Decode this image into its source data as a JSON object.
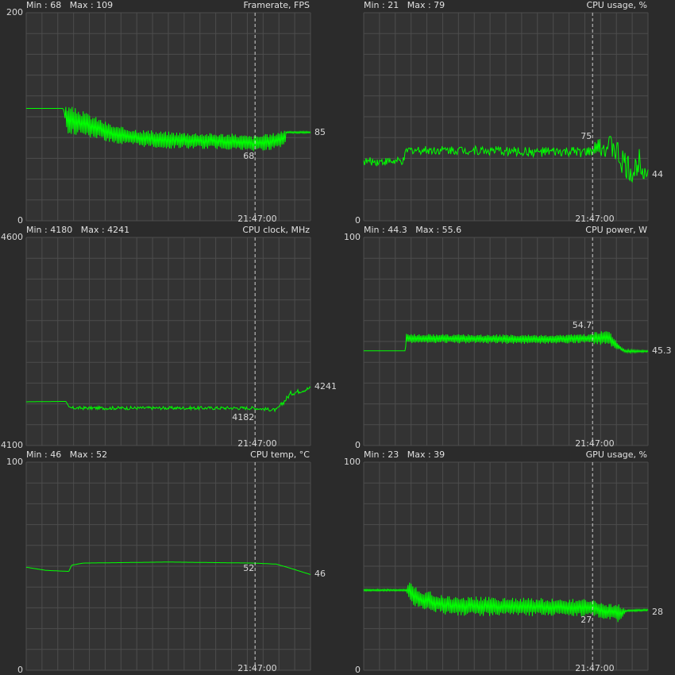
{
  "colors": {
    "background": "#2b2b2b",
    "plot_background": "#333333",
    "grid": "#4d4d4d",
    "line": "#00ff00",
    "marker": "#cfcfcf",
    "text": "#d8d8d8"
  },
  "marker_time": "21:47:00",
  "marker_fraction": 0.805,
  "chart_data": [
    {
      "type": "line",
      "title": "Framerate, FPS",
      "min_label": "Min : 68",
      "max_label": "Max : 109",
      "ylim": [
        0,
        200
      ],
      "y_top_label": "200",
      "y_bottom_label": "0",
      "current_label": "85",
      "current_value": 85,
      "marker_value_label": "68",
      "marker_value": 68,
      "series_shape": [
        [
          0,
          108
        ],
        [
          0.13,
          108
        ],
        [
          0.14,
          98
        ],
        [
          0.18,
          95
        ],
        [
          0.24,
          90
        ],
        [
          0.32,
          82
        ],
        [
          0.45,
          78
        ],
        [
          0.6,
          77
        ],
        [
          0.72,
          76
        ],
        [
          0.8,
          74
        ],
        [
          0.86,
          76
        ],
        [
          0.91,
          80
        ],
        [
          0.915,
          85
        ],
        [
          1,
          85
        ]
      ],
      "noise": [
        [
          0,
          0
        ],
        [
          0.135,
          0
        ],
        [
          0.14,
          14
        ],
        [
          0.3,
          9
        ],
        [
          0.6,
          8
        ],
        [
          0.91,
          8
        ],
        [
          0.915,
          1
        ],
        [
          1,
          1
        ]
      ],
      "noise_mode": "sawtooth"
    },
    {
      "type": "line",
      "title": "CPU usage, %",
      "min_label": "Min : 21",
      "max_label": "Max : 79",
      "ylim": [
        0,
        200
      ],
      "y_top_label": "",
      "y_bottom_label": "0",
      "current_label": "44",
      "current_value": 44,
      "marker_value_label": "75",
      "marker_value": 75,
      "series_shape": [
        [
          0,
          57
        ],
        [
          0.14,
          57
        ],
        [
          0.15,
          67
        ],
        [
          0.16,
          68
        ],
        [
          0.35,
          68
        ],
        [
          0.6,
          66
        ],
        [
          0.8,
          66
        ],
        [
          0.82,
          70
        ],
        [
          0.88,
          72
        ],
        [
          0.9,
          60
        ],
        [
          0.93,
          50
        ],
        [
          0.95,
          45
        ],
        [
          0.97,
          60
        ],
        [
          1,
          44
        ]
      ],
      "noise": [
        [
          0,
          4
        ],
        [
          0.14,
          4
        ],
        [
          0.15,
          4
        ],
        [
          0.8,
          5
        ],
        [
          0.82,
          8
        ],
        [
          0.9,
          14
        ],
        [
          1,
          12
        ]
      ],
      "noise_mode": "random"
    },
    {
      "type": "line",
      "title": "CPU clock, MHz",
      "min_label": "Min : 4180",
      "max_label": "Max : 4241",
      "ylim": [
        4100,
        4600
      ],
      "y_top_label": "4600",
      "y_bottom_label": "4100",
      "current_label": "4241",
      "current_value": 4241,
      "marker_value_label": "4182",
      "marker_value": 4182,
      "series_shape": [
        [
          0,
          4205
        ],
        [
          0.14,
          4206
        ],
        [
          0.15,
          4190
        ],
        [
          0.6,
          4190
        ],
        [
          0.8,
          4190
        ],
        [
          0.88,
          4185
        ],
        [
          0.9,
          4200
        ],
        [
          0.93,
          4225
        ],
        [
          1,
          4238
        ]
      ],
      "noise": [
        [
          0,
          0
        ],
        [
          0.14,
          0
        ],
        [
          0.15,
          4
        ],
        [
          0.88,
          4
        ],
        [
          0.9,
          6
        ],
        [
          1,
          5
        ]
      ],
      "noise_mode": "random"
    },
    {
      "type": "line",
      "title": "CPU power, W",
      "min_label": "Min : 44.3",
      "max_label": "Max : 55.6",
      "ylim": [
        0,
        100
      ],
      "y_top_label": "100",
      "y_bottom_label": "0",
      "current_label": "45.3",
      "current_value": 45.3,
      "marker_value_label": "54.7",
      "marker_value": 54.7,
      "series_shape": [
        [
          0,
          45.5
        ],
        [
          0.145,
          45.5
        ],
        [
          0.15,
          51.5
        ],
        [
          0.6,
          51
        ],
        [
          0.8,
          51.5
        ],
        [
          0.86,
          52
        ],
        [
          0.9,
          47
        ],
        [
          0.92,
          45.3
        ],
        [
          1,
          45.3
        ]
      ],
      "noise": [
        [
          0,
          0
        ],
        [
          0.145,
          0
        ],
        [
          0.15,
          2.2
        ],
        [
          0.8,
          2.2
        ],
        [
          0.82,
          3.5
        ],
        [
          0.88,
          3
        ],
        [
          0.9,
          1
        ],
        [
          1,
          0.5
        ]
      ],
      "noise_mode": "sawtooth"
    },
    {
      "type": "line",
      "title": "CPU temp, °C",
      "min_label": "Min : 46",
      "max_label": "Max : 52",
      "ylim": [
        0,
        100
      ],
      "y_top_label": "100",
      "y_bottom_label": "0",
      "current_label": "46",
      "current_value": 46,
      "marker_value_label": "52",
      "marker_value": 52,
      "series_shape": [
        [
          0,
          49.5
        ],
        [
          0.07,
          48
        ],
        [
          0.15,
          47.5
        ],
        [
          0.16,
          50.5
        ],
        [
          0.2,
          51.5
        ],
        [
          0.5,
          52
        ],
        [
          0.8,
          51.5
        ],
        [
          0.88,
          51
        ],
        [
          0.93,
          49
        ],
        [
          1,
          46
        ]
      ],
      "noise": [
        [
          0,
          0
        ],
        [
          1,
          0
        ]
      ],
      "noise_mode": "none"
    },
    {
      "type": "line",
      "title": "GPU usage, %",
      "min_label": "Min : 23",
      "max_label": "Max : 39",
      "ylim": [
        0,
        100
      ],
      "y_top_label": "100",
      "y_bottom_label": "0",
      "current_label": "28",
      "current_value": 28,
      "marker_value_label": "27",
      "marker_value": 27,
      "series_shape": [
        [
          0,
          38.5
        ],
        [
          0.15,
          38.5
        ],
        [
          0.2,
          34
        ],
        [
          0.3,
          31
        ],
        [
          0.5,
          30.5
        ],
        [
          0.8,
          30
        ],
        [
          0.9,
          27
        ],
        [
          0.92,
          28.5
        ],
        [
          1,
          29
        ]
      ],
      "noise": [
        [
          0,
          0.5
        ],
        [
          0.15,
          0.5
        ],
        [
          0.16,
          5
        ],
        [
          0.88,
          4
        ],
        [
          0.9,
          5
        ],
        [
          0.92,
          0.5
        ],
        [
          1,
          0.5
        ]
      ],
      "noise_mode": "sawtooth"
    }
  ]
}
